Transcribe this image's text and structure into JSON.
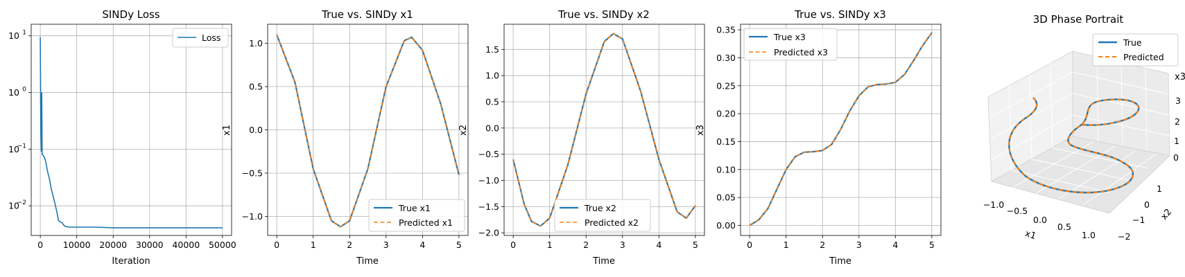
{
  "colors": {
    "true": "#1f77b4",
    "predicted": "#ff7f0e",
    "grid": "#b0b0b0"
  },
  "chart_data": [
    {
      "type": "line",
      "title": "SINDy Loss",
      "xlabel": "Iteration",
      "ylabel": "",
      "yscale": "log",
      "xlim": [
        -2500,
        52500
      ],
      "ylim": [
        0.003,
        16
      ],
      "xticks": [
        0,
        10000,
        20000,
        30000,
        40000,
        50000
      ],
      "xtick_labels": [
        "0",
        "10000",
        "20000",
        "30000",
        "40000",
        "50000"
      ],
      "yticks": [
        0.01,
        0.1,
        1,
        10
      ],
      "ytick_labels": [
        "10",
        "10",
        "10",
        "10"
      ],
      "ytick_exponents": [
        "−2",
        "−1",
        "0",
        "1"
      ],
      "legend": {
        "position": "upper-right",
        "entries": [
          "Loss"
        ]
      },
      "series": [
        {
          "name": "Loss",
          "x": [
            0,
            150,
            300,
            400,
            500,
            800,
            1200,
            1500,
            2000,
            2500,
            3000,
            3500,
            4000,
            4500,
            5000,
            5500,
            6000,
            6500,
            7000,
            8000,
            10000,
            15000,
            20000,
            30000,
            40000,
            50000
          ],
          "y": [
            9.5,
            0.2,
            0.09,
            1.0,
            0.08,
            0.078,
            0.07,
            0.06,
            0.04,
            0.03,
            0.02,
            0.015,
            0.011,
            0.008,
            0.0055,
            0.0052,
            0.005,
            0.0045,
            0.0043,
            0.0042,
            0.0042,
            0.0042,
            0.0041,
            0.0041,
            0.0041,
            0.0041
          ]
        }
      ]
    },
    {
      "type": "line",
      "title": "True vs. SINDy x1",
      "xlabel": "Time",
      "ylabel": "x1",
      "xlim": [
        -0.25,
        5.25
      ],
      "ylim": [
        -1.22,
        1.22
      ],
      "xticks": [
        0,
        1,
        2,
        3,
        4,
        5
      ],
      "xtick_labels": [
        "0",
        "1",
        "2",
        "3",
        "4",
        "5"
      ],
      "yticks": [
        -1.0,
        -0.5,
        0.0,
        0.5,
        1.0
      ],
      "ytick_labels": [
        "−1.0",
        "−0.5",
        "0.0",
        "0.5",
        "1.0"
      ],
      "legend": {
        "position": "lower-right",
        "entries": [
          "True x1",
          "Predicted x1"
        ]
      },
      "series": [
        {
          "name": "True x1",
          "x": [
            0,
            0.5,
            1.0,
            1.5,
            1.75,
            2.0,
            2.5,
            3.0,
            3.5,
            3.7,
            4.0,
            4.5,
            5.0
          ],
          "y": [
            1.1,
            0.55,
            -0.45,
            -1.05,
            -1.12,
            -1.05,
            -0.45,
            0.5,
            1.03,
            1.07,
            0.92,
            0.3,
            -0.52
          ]
        },
        {
          "name": "Predicted x1",
          "x": [
            0,
            0.5,
            1.0,
            1.5,
            1.75,
            2.0,
            2.5,
            3.0,
            3.5,
            3.7,
            4.0,
            4.5,
            5.0
          ],
          "y": [
            1.1,
            0.55,
            -0.45,
            -1.05,
            -1.12,
            -1.05,
            -0.45,
            0.5,
            1.03,
            1.07,
            0.92,
            0.3,
            -0.52
          ]
        }
      ]
    },
    {
      "type": "line",
      "title": "True vs. SINDy x2",
      "xlabel": "Time",
      "ylabel": "x2",
      "xlim": [
        -0.25,
        5.25
      ],
      "ylim": [
        -2.05,
        1.98
      ],
      "xticks": [
        0,
        1,
        2,
        3,
        4,
        5
      ],
      "xtick_labels": [
        "0",
        "1",
        "2",
        "3",
        "4",
        "5"
      ],
      "yticks": [
        -2.0,
        -1.5,
        -1.0,
        -0.5,
        0.0,
        0.5,
        1.0,
        1.5
      ],
      "ytick_labels": [
        "−2.0",
        "−1.5",
        "−1.0",
        "−0.5",
        "0.0",
        "0.5",
        "1.0",
        "1.5"
      ],
      "legend": {
        "position": "lower-center",
        "entries": [
          "True x2",
          "Predicted x2"
        ]
      },
      "series": [
        {
          "name": "True x2",
          "x": [
            0,
            0.3,
            0.5,
            0.75,
            1.0,
            1.5,
            2.0,
            2.5,
            2.75,
            3.0,
            3.5,
            4.0,
            4.5,
            4.75,
            5.0
          ],
          "y": [
            -0.6,
            -1.45,
            -1.78,
            -1.87,
            -1.72,
            -0.7,
            0.65,
            1.65,
            1.8,
            1.7,
            0.7,
            -0.6,
            -1.6,
            -1.72,
            -1.48
          ]
        },
        {
          "name": "Predicted x2",
          "x": [
            0,
            0.3,
            0.5,
            0.75,
            1.0,
            1.5,
            2.0,
            2.5,
            2.75,
            3.0,
            3.5,
            4.0,
            4.5,
            4.75,
            5.0
          ],
          "y": [
            -0.6,
            -1.45,
            -1.78,
            -1.87,
            -1.72,
            -0.7,
            0.65,
            1.65,
            1.8,
            1.7,
            0.7,
            -0.6,
            -1.6,
            -1.72,
            -1.48
          ]
        }
      ]
    },
    {
      "type": "line",
      "title": "True vs. SINDy x3",
      "xlabel": "Time",
      "ylabel": "x3",
      "xlim": [
        -0.25,
        5.25
      ],
      "ylim": [
        -0.018,
        0.36
      ],
      "xticks": [
        0,
        1,
        2,
        3,
        4,
        5
      ],
      "xtick_labels": [
        "0",
        "1",
        "2",
        "3",
        "4",
        "5"
      ],
      "yticks": [
        0.0,
        0.05,
        0.1,
        0.15,
        0.2,
        0.25,
        0.3,
        0.35
      ],
      "ytick_labels": [
        "0.00",
        "0.05",
        "0.10",
        "0.15",
        "0.20",
        "0.25",
        "0.30",
        "0.35"
      ],
      "legend": {
        "position": "upper-left",
        "entries": [
          "True x3",
          "Predicted x3"
        ]
      },
      "series": [
        {
          "name": "True x3",
          "x": [
            0,
            0.25,
            0.5,
            0.75,
            1.0,
            1.25,
            1.5,
            1.75,
            2.0,
            2.25,
            2.5,
            2.75,
            3.0,
            3.25,
            3.5,
            3.75,
            4.0,
            4.25,
            4.5,
            4.75,
            5.0
          ],
          "y": [
            0.0,
            0.01,
            0.03,
            0.065,
            0.1,
            0.123,
            0.131,
            0.132,
            0.134,
            0.145,
            0.172,
            0.205,
            0.232,
            0.248,
            0.252,
            0.253,
            0.256,
            0.27,
            0.295,
            0.322,
            0.345
          ]
        },
        {
          "name": "Predicted x3",
          "x": [
            0,
            0.25,
            0.5,
            0.75,
            1.0,
            1.25,
            1.5,
            1.75,
            2.0,
            2.25,
            2.5,
            2.75,
            3.0,
            3.25,
            3.5,
            3.75,
            4.0,
            4.25,
            4.5,
            4.75,
            5.0
          ],
          "y": [
            0.0,
            0.01,
            0.03,
            0.065,
            0.1,
            0.123,
            0.131,
            0.132,
            0.134,
            0.145,
            0.172,
            0.205,
            0.232,
            0.248,
            0.252,
            0.253,
            0.256,
            0.27,
            0.295,
            0.322,
            0.345
          ]
        }
      ]
    },
    {
      "type": "line3d",
      "title": "3D Phase Portrait",
      "xlabel": "x1",
      "ylabel": "x2",
      "zlabel": "x3",
      "xticks": [
        -1.0,
        -0.5,
        0.0,
        0.5,
        1.0
      ],
      "xtick_labels": [
        "−1.0",
        "−0.5",
        "0.0",
        "0.5",
        "1.0"
      ],
      "yticks": [
        -2,
        -1,
        0,
        1
      ],
      "ytick_labels": [
        "−2",
        "−1",
        "0",
        "1"
      ],
      "zticks": [
        0,
        1,
        2,
        3
      ],
      "ztick_labels": [
        "0",
        "1",
        "2",
        "3"
      ],
      "legend": {
        "position": "upper-right",
        "entries": [
          "True",
          "Predicted"
        ]
      }
    }
  ]
}
